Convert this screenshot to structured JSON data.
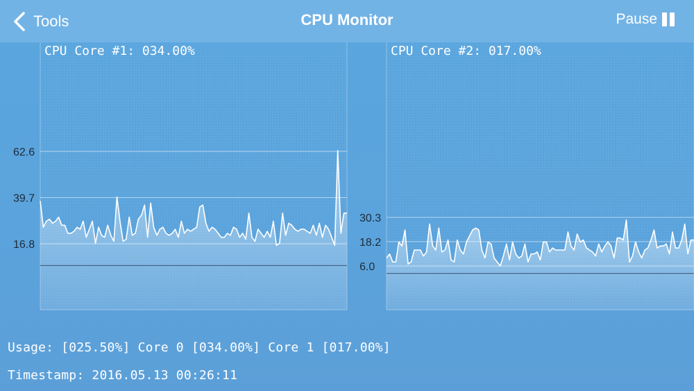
{
  "navbar": {
    "back_label": "Tools",
    "title": "CPU Monitor",
    "pause_label": "Pause",
    "back_icon": "chevron-left-icon",
    "pause_icon": "pause-icon"
  },
  "colors": {
    "nav_background": "#72b3e6",
    "page_background": "#5ba3dc",
    "line": "#ffffff"
  },
  "charts": [
    {
      "title": "CPU Core #1: 034.00%",
      "ticks": [
        "62.6",
        "39.7",
        "16.8"
      ],
      "tick_values": [
        62.6,
        39.7,
        16.8
      ],
      "baseline_value": 6.0,
      "values": [
        38,
        25,
        28,
        29,
        27,
        28,
        30,
        26,
        26,
        22,
        22,
        23,
        25,
        24,
        28,
        20,
        24,
        28,
        17,
        25,
        21,
        20,
        26,
        21,
        18,
        40,
        28,
        18,
        19,
        30,
        21,
        22,
        29,
        31,
        36,
        20,
        37,
        25,
        21,
        24,
        25,
        22,
        21,
        22,
        24,
        20,
        28,
        22,
        24,
        23,
        24,
        25,
        35,
        36,
        27,
        23,
        25,
        24,
        22,
        20,
        20,
        22,
        21,
        25,
        24,
        20,
        22,
        19,
        32,
        20,
        18,
        24,
        22,
        20,
        23,
        20,
        28,
        16,
        17,
        32,
        21,
        27,
        26,
        24,
        23,
        24,
        24,
        23,
        22,
        26,
        21,
        27,
        20,
        26,
        24,
        20,
        16,
        63,
        22,
        32,
        32
      ]
    },
    {
      "title": "CPU Core #2: 017.00%",
      "ticks": [
        "30.3",
        "18.2",
        "6.0"
      ],
      "tick_values": [
        30.3,
        18.2,
        6.0
      ],
      "baseline_value": 2.3,
      "values": [
        10,
        12,
        8,
        8,
        18,
        16,
        24,
        7,
        8,
        14,
        14,
        14,
        11,
        13,
        27,
        16,
        14,
        25,
        13,
        14,
        19,
        9,
        8,
        19,
        14,
        12,
        18,
        21,
        24,
        25,
        24,
        14,
        10,
        18,
        17,
        10,
        8,
        6,
        11,
        17,
        9,
        18,
        12,
        10,
        11,
        17,
        8,
        12,
        12,
        13,
        9,
        18,
        18,
        13,
        15,
        14,
        14,
        14,
        14,
        23,
        16,
        14,
        22,
        18,
        19,
        15,
        14,
        13,
        11,
        17,
        13,
        16,
        18,
        16,
        10,
        20,
        20,
        19,
        29,
        8,
        11,
        18,
        13,
        10,
        14,
        15,
        19,
        24,
        15,
        16,
        16,
        17,
        12,
        23,
        15,
        15,
        19,
        27,
        12,
        19,
        19
      ]
    }
  ],
  "footer": {
    "usage": "Usage: [025.50%] Core 0 [034.00%] Core 1 [017.00%]",
    "timestamp": "Timestamp: 2016.05.13 00:26:11"
  }
}
